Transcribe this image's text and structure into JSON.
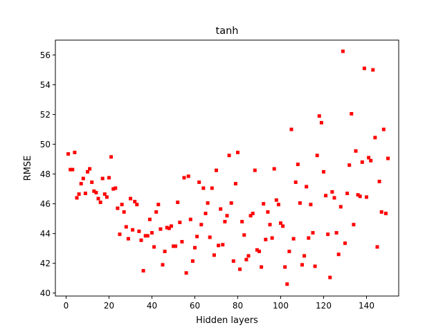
{
  "chart_data": {
    "type": "scatter",
    "title": "tanh",
    "xlabel": "Hidden layers",
    "ylabel": "RMSE",
    "xlim": [
      -5,
      155
    ],
    "ylim": [
      39.8,
      57.0
    ],
    "xticks": [
      0,
      20,
      40,
      60,
      80,
      100,
      120,
      140
    ],
    "yticks": [
      40,
      42,
      44,
      46,
      48,
      50,
      52,
      54,
      56
    ],
    "xtick_labels": [
      "0",
      "20",
      "40",
      "60",
      "80",
      "100",
      "120",
      "140"
    ],
    "ytick_labels": [
      "40",
      "42",
      "44",
      "46",
      "48",
      "50",
      "52",
      "54",
      "56"
    ],
    "grid": false,
    "marker_color": "#ff0000",
    "series": [
      {
        "x": [
          1,
          2,
          3,
          4,
          5,
          6,
          7,
          8,
          9,
          10,
          11,
          12,
          13,
          14,
          15,
          16,
          17,
          18,
          19,
          20,
          21,
          22,
          23,
          24,
          25,
          26,
          27,
          28,
          29,
          30,
          31,
          32,
          33,
          34,
          35,
          36,
          37,
          38,
          39,
          40,
          41,
          42,
          43,
          44,
          45,
          46,
          47,
          48,
          49,
          50,
          51,
          52,
          53,
          54,
          55,
          56,
          57,
          58,
          59,
          60,
          61,
          62,
          63,
          64,
          65,
          66,
          67,
          68,
          69,
          70,
          71,
          72,
          73,
          74,
          75,
          76,
          77,
          78,
          79,
          80,
          81,
          82,
          83,
          84,
          85,
          86,
          87,
          88,
          89,
          90,
          91,
          92,
          93,
          94,
          95,
          96,
          97,
          98,
          99,
          100,
          101,
          102,
          103,
          104,
          105,
          106,
          107,
          108,
          109,
          110,
          111,
          112,
          113,
          114,
          115,
          116,
          117,
          118,
          119,
          120,
          121,
          122,
          123,
          124,
          125,
          126,
          127,
          128,
          129,
          130,
          131,
          132,
          133,
          134,
          135,
          136,
          137,
          138,
          139,
          140,
          141,
          142,
          143,
          144,
          145,
          146,
          147,
          148,
          149,
          150
        ],
        "y": [
          49.35,
          48.3,
          48.3,
          49.45,
          46.4,
          46.65,
          47.35,
          47.7,
          46.7,
          48.15,
          48.35,
          47.45,
          46.85,
          46.75,
          46.35,
          46.1,
          47.7,
          46.65,
          46.45,
          47.75,
          49.15,
          47.0,
          47.05,
          45.7,
          43.95,
          45.95,
          45.45,
          44.45,
          43.65,
          46.35,
          44.25,
          46.15,
          45.95,
          44.15,
          43.55,
          41.5,
          43.85,
          43.85,
          44.95,
          44.05,
          43.1,
          45.45,
          45.95,
          44.3,
          41.9,
          42.8,
          44.4,
          44.35,
          44.5,
          43.15,
          43.15,
          46.1,
          44.75,
          43.45,
          47.75,
          41.35,
          47.85,
          44.95,
          42.15,
          43.05,
          43.8,
          47.45,
          44.6,
          47.05,
          45.35,
          46.05,
          43.75,
          47.05,
          42.55,
          48.25,
          43.2,
          45.65,
          43.25,
          44.8,
          45.2,
          49.25,
          46.05,
          42.15,
          47.35,
          49.45,
          41.6,
          44.8,
          43.9,
          42.25,
          42.5,
          45.2,
          45.35,
          48.25,
          42.9,
          42.8,
          41.75,
          46.0,
          43.6,
          45.45,
          44.6,
          43.7,
          48.35,
          46.25,
          45.95,
          44.7,
          44.5,
          41.75,
          40.6,
          42.8,
          51.0,
          43.65,
          47.45,
          48.65,
          46.05,
          41.9,
          42.5,
          47.15,
          43.7,
          45.95,
          44.05,
          41.8,
          49.25,
          51.9,
          51.45,
          48.15,
          46.55,
          43.95,
          41.05,
          46.8,
          46.4,
          44.05,
          42.6,
          45.8,
          56.25,
          43.35,
          46.7,
          48.6,
          52.05,
          44.6,
          49.55,
          46.6,
          46.5,
          48.8,
          55.1,
          46.45,
          49.1,
          48.9,
          55.0,
          50.45,
          43.1,
          47.5,
          45.45,
          51.0,
          45.35,
          49.05
        ]
      }
    ]
  }
}
